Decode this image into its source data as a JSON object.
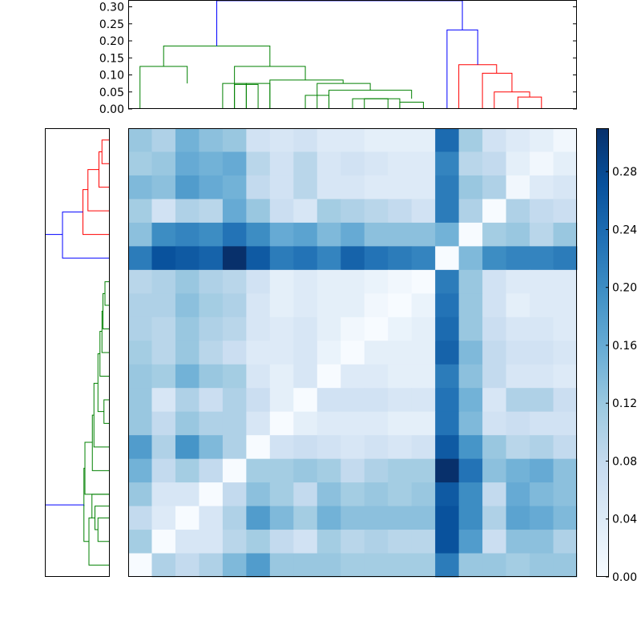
{
  "chart_data": [
    {
      "type": "dendrogram",
      "orientation": "top",
      "ylim": [
        0,
        0.32
      ],
      "yticks": [
        "0.00",
        "0.05",
        "0.10",
        "0.15",
        "0.20",
        "0.25",
        "0.30"
      ],
      "colors": {
        "green": "#008000",
        "red": "#ff0000",
        "blue": "#0000ff"
      },
      "leaves": 19,
      "links": [
        {
          "left": [
            6.5,
            0.0
          ],
          "right": [
            7.5,
            0.0
          ],
          "height": 0.02,
          "color": "#008000"
        },
        {
          "left": [
            5.5,
            0.0
          ],
          "right": [
            7.0,
            0.02
          ],
          "height": 0.03,
          "color": "#008000"
        },
        {
          "left": [
            4.5,
            0.0
          ],
          "right": [
            6.25,
            0.03
          ],
          "height": 0.04,
          "color": "#008000"
        },
        {
          "left": [
            3.5,
            0.0
          ],
          "right": [
            5.375,
            0.04
          ],
          "height": 0.055,
          "color": "#008000"
        },
        {
          "left": [
            2.5,
            0.0
          ],
          "right": [
            4.4,
            0.055
          ],
          "height": 0.075,
          "color": "#008000"
        },
        {
          "left": [
            1.5,
            0.0
          ],
          "right": [
            3.5,
            0.075
          ],
          "height": 0.083,
          "color": "#008000"
        },
        {
          "left": [
            0.5,
            0.0
          ],
          "right": [
            2.5,
            0.083
          ],
          "height": 0.125,
          "color": "#008000"
        },
        {
          "left": [
            2.0,
            0.0
          ],
          "right": [
            2.0,
            0.0
          ],
          "height": 0.0,
          "color": "#008000"
        },
        {
          "left": [
            1.5,
            0.0
          ],
          "right": [
            2.5,
            0.0
          ],
          "height": 0.07,
          "color": "#008000"
        },
        {
          "left": [
            -1.5,
            0.0
          ],
          "right": [
            -0.5,
            0.0
          ],
          "height": 0.073,
          "color": "#008000"
        },
        {
          "left": [
            -2.0,
            0.0
          ],
          "right": [
            -1.0,
            0.073
          ],
          "height": 0.075,
          "color": "#008000"
        },
        {
          "left": [
            -2.5,
            0.0
          ],
          "right": [
            -1.5,
            0.075
          ],
          "height": 0.123,
          "color": "#008000"
        },
        {
          "left": [
            -2.0,
            0.123
          ],
          "right": [
            1.5,
            0.125
          ],
          "height": 0.185,
          "color": "#008000"
        },
        {
          "left": [
            10.5,
            0.0
          ],
          "right": [
            11.5,
            0.0
          ],
          "height": 0.035,
          "color": "#ff0000"
        },
        {
          "left": [
            9.5,
            0.0
          ],
          "right": [
            11.0,
            0.035
          ],
          "height": 0.05,
          "color": "#ff0000"
        },
        {
          "left": [
            8.5,
            0.0
          ],
          "right": [
            10.25,
            0.05
          ],
          "height": 0.105,
          "color": "#ff0000"
        },
        {
          "left": [
            7.5,
            0.0
          ],
          "right": [
            9.375,
            0.105
          ],
          "height": 0.13,
          "color": "#ff0000"
        },
        {
          "left": [
            6.5,
            0.0
          ],
          "right": [
            8.4,
            0.13
          ],
          "height": 0.232,
          "color": "#0000ff"
        },
        {
          "left": [
            -0.25,
            0.185
          ],
          "right": [
            7.45,
            0.232
          ],
          "height": 0.318,
          "color": "#0000ff"
        }
      ]
    },
    {
      "type": "dendrogram",
      "orientation": "left",
      "leaves": 19
    },
    {
      "type": "heatmap",
      "colormap": "Blues",
      "vmin": 0.0,
      "vmax": 0.31,
      "colorbar_ticks": [
        "0.00",
        "0.04",
        "0.08",
        "0.12",
        "0.16",
        "0.20",
        "0.24",
        "0.28"
      ],
      "matrix": [
        [
          0.12,
          0.1,
          0.15,
          0.13,
          0.12,
          0.06,
          0.05,
          0.06,
          0.04,
          0.04,
          0.03,
          0.03,
          0.03,
          0.24,
          0.11,
          0.06,
          0.04,
          0.03,
          0.01
        ],
        [
          0.11,
          0.12,
          0.16,
          0.15,
          0.16,
          0.09,
          0.06,
          0.09,
          0.05,
          0.06,
          0.05,
          0.04,
          0.04,
          0.21,
          0.09,
          0.08,
          0.03,
          0.01,
          0.03
        ],
        [
          0.14,
          0.13,
          0.18,
          0.16,
          0.15,
          0.08,
          0.06,
          0.09,
          0.05,
          0.05,
          0.04,
          0.04,
          0.04,
          0.22,
          0.12,
          0.1,
          0.01,
          0.04,
          0.05
        ],
        [
          0.11,
          0.06,
          0.1,
          0.09,
          0.16,
          0.12,
          0.07,
          0.05,
          0.11,
          0.1,
          0.09,
          0.08,
          0.06,
          0.22,
          0.1,
          0.0,
          0.1,
          0.08,
          0.07
        ],
        [
          0.13,
          0.2,
          0.21,
          0.2,
          0.23,
          0.2,
          0.16,
          0.17,
          0.14,
          0.16,
          0.13,
          0.13,
          0.13,
          0.15,
          0.0,
          0.11,
          0.12,
          0.09,
          0.12
        ],
        [
          0.22,
          0.27,
          0.26,
          0.25,
          0.31,
          0.26,
          0.22,
          0.23,
          0.21,
          0.25,
          0.23,
          0.22,
          0.21,
          0.0,
          0.14,
          0.2,
          0.21,
          0.21,
          0.22
        ],
        [
          0.09,
          0.1,
          0.12,
          0.1,
          0.09,
          0.06,
          0.03,
          0.04,
          0.03,
          0.03,
          0.02,
          0.01,
          0.0,
          0.22,
          0.12,
          0.06,
          0.04,
          0.04,
          0.04
        ],
        [
          0.1,
          0.1,
          0.13,
          0.11,
          0.1,
          0.05,
          0.03,
          0.04,
          0.03,
          0.03,
          0.01,
          0.0,
          0.02,
          0.23,
          0.12,
          0.06,
          0.03,
          0.04,
          0.04
        ],
        [
          0.1,
          0.09,
          0.12,
          0.1,
          0.09,
          0.05,
          0.04,
          0.05,
          0.03,
          0.01,
          0.0,
          0.02,
          0.03,
          0.24,
          0.12,
          0.07,
          0.05,
          0.05,
          0.04
        ],
        [
          0.11,
          0.09,
          0.12,
          0.09,
          0.07,
          0.04,
          0.04,
          0.05,
          0.02,
          0.0,
          0.03,
          0.03,
          0.03,
          0.25,
          0.14,
          0.08,
          0.06,
          0.06,
          0.05
        ],
        [
          0.12,
          0.11,
          0.15,
          0.12,
          0.11,
          0.05,
          0.03,
          0.05,
          0.0,
          0.04,
          0.04,
          0.03,
          0.03,
          0.22,
          0.13,
          0.08,
          0.05,
          0.05,
          0.04
        ],
        [
          0.12,
          0.05,
          0.1,
          0.07,
          0.1,
          0.07,
          0.03,
          0.0,
          0.06,
          0.06,
          0.06,
          0.05,
          0.05,
          0.23,
          0.15,
          0.05,
          0.1,
          0.1,
          0.07
        ],
        [
          0.12,
          0.08,
          0.12,
          0.1,
          0.1,
          0.05,
          0.0,
          0.03,
          0.04,
          0.04,
          0.04,
          0.03,
          0.03,
          0.23,
          0.14,
          0.06,
          0.07,
          0.06,
          0.06
        ],
        [
          0.18,
          0.1,
          0.19,
          0.14,
          0.1,
          0.0,
          0.06,
          0.07,
          0.06,
          0.05,
          0.06,
          0.05,
          0.06,
          0.26,
          0.19,
          0.12,
          0.09,
          0.1,
          0.08
        ],
        [
          0.15,
          0.08,
          0.11,
          0.08,
          0.0,
          0.11,
          0.11,
          0.12,
          0.11,
          0.08,
          0.1,
          0.11,
          0.11,
          0.31,
          0.23,
          0.13,
          0.15,
          0.16,
          0.13
        ],
        [
          0.12,
          0.05,
          0.05,
          0.0,
          0.08,
          0.13,
          0.11,
          0.08,
          0.13,
          0.11,
          0.12,
          0.11,
          0.12,
          0.26,
          0.2,
          0.08,
          0.16,
          0.14,
          0.13
        ],
        [
          0.08,
          0.04,
          0.0,
          0.05,
          0.1,
          0.18,
          0.14,
          0.11,
          0.15,
          0.13,
          0.13,
          0.13,
          0.13,
          0.27,
          0.2,
          0.1,
          0.17,
          0.16,
          0.14
        ],
        [
          0.11,
          0.0,
          0.05,
          0.05,
          0.09,
          0.11,
          0.08,
          0.06,
          0.11,
          0.09,
          0.1,
          0.09,
          0.09,
          0.27,
          0.18,
          0.07,
          0.13,
          0.13,
          0.1
        ],
        [
          0.0,
          0.1,
          0.08,
          0.1,
          0.14,
          0.18,
          0.12,
          0.12,
          0.12,
          0.11,
          0.11,
          0.11,
          0.11,
          0.22,
          0.12,
          0.12,
          0.11,
          0.12,
          0.12
        ]
      ]
    }
  ]
}
